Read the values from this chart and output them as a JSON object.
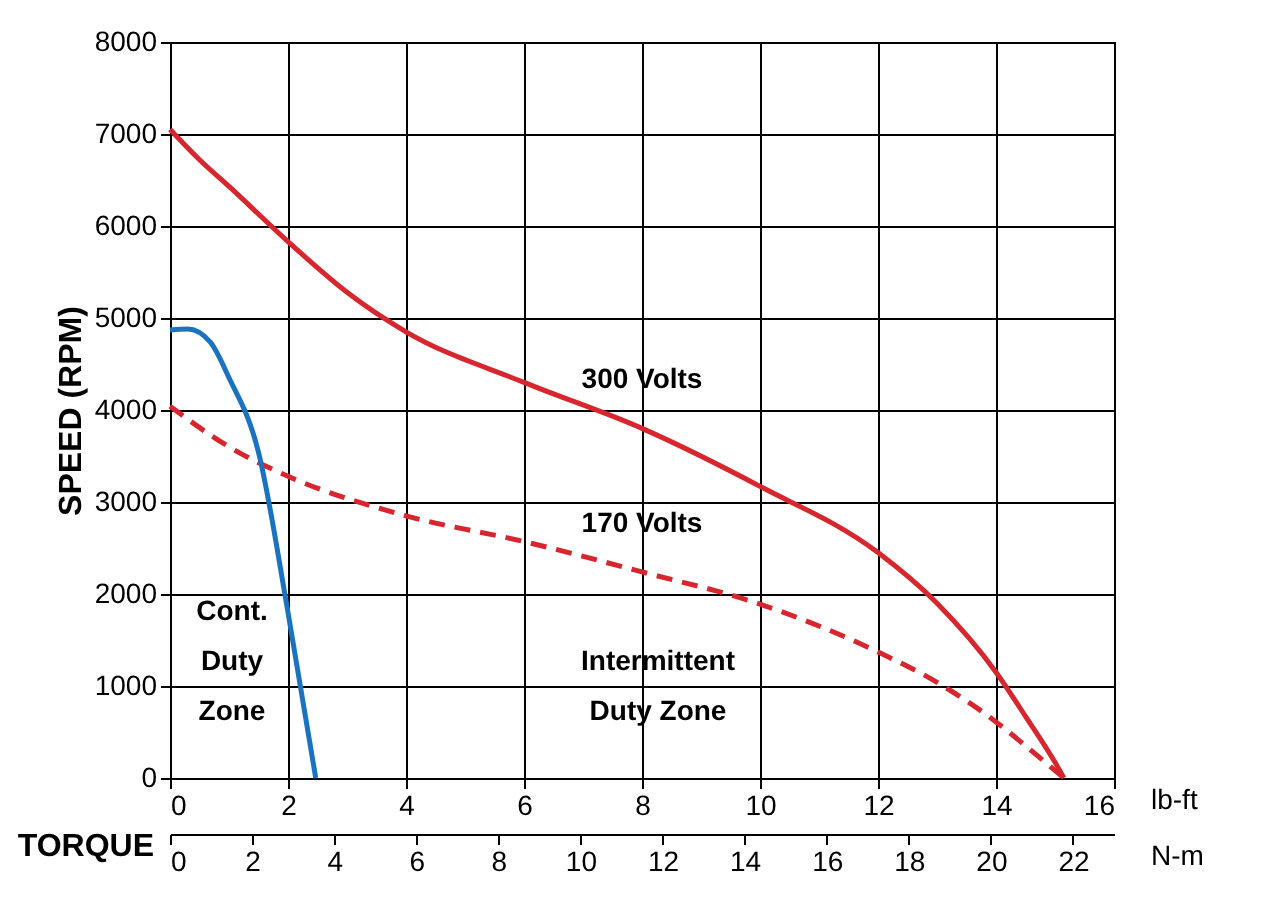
{
  "chart_data": {
    "type": "line",
    "ylabel": "SPEED (RPM)",
    "xlabel": "lb-ft",
    "x2label": "N-m",
    "xlim": [
      0,
      16
    ],
    "xticks": [
      0,
      2,
      4,
      6,
      8,
      10,
      12,
      14,
      16
    ],
    "ylim": [
      0,
      8000
    ],
    "yticks": [
      0,
      1000,
      2000,
      3000,
      4000,
      5000,
      6000,
      7000,
      8000
    ],
    "x2lim": [
      0,
      23
    ],
    "x2ticks": [
      0,
      2,
      4,
      6,
      8,
      10,
      12,
      14,
      16,
      18,
      20,
      22
    ],
    "grid": true,
    "marker": "none",
    "series": [
      {
        "name": "300 Volts",
        "color": "#d7262e",
        "line_style": "solid",
        "x": [
          0,
          0.5,
          1,
          2,
          3,
          4,
          6,
          8,
          10,
          12,
          13,
          14,
          14.5,
          15,
          15.15
        ],
        "values": [
          7050,
          6720,
          6430,
          5830,
          5280,
          4850,
          4300,
          3800,
          3170,
          2450,
          1900,
          1150,
          670,
          170,
          0
        ]
      },
      {
        "name": "170 Volts",
        "color": "#d7262e",
        "line_style": "dashed",
        "x": [
          0,
          1,
          2,
          4,
          6,
          8,
          10,
          12,
          13,
          14,
          14.5,
          15.15
        ],
        "values": [
          4040,
          3600,
          3280,
          2850,
          2570,
          2240,
          1890,
          1370,
          1040,
          610,
          350,
          0
        ]
      },
      {
        "color": "#1a73c1",
        "line_style": "solid",
        "x": [
          0,
          0.3,
          0.68,
          1,
          1.5,
          2,
          2.47
        ],
        "values": [
          4870,
          4880,
          4740,
          4350,
          3540,
          1800,
          0
        ]
      }
    ],
    "annotations": [
      "TORQUE",
      "Cont.\nDuty\nZone",
      "Intermittent\nDuty Zone"
    ]
  }
}
